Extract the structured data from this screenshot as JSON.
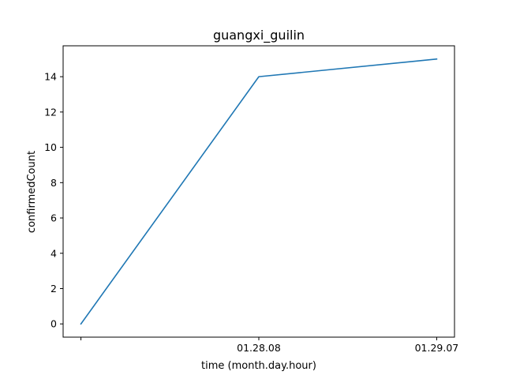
{
  "chart_data": {
    "type": "line",
    "title": "guangxi_guilin",
    "xlabel": "time (month.day.hour)",
    "ylabel": "confirmedCount",
    "categories": [
      "",
      "01.28.08",
      "01.29.07"
    ],
    "series": [
      {
        "values": [
          0,
          14,
          15
        ],
        "color": "#1f77b4"
      }
    ],
    "ylim": [
      -0.75,
      15.75
    ],
    "yticks": [
      0,
      2,
      4,
      6,
      8,
      10,
      12,
      14
    ],
    "grid": false,
    "legend": false
  }
}
